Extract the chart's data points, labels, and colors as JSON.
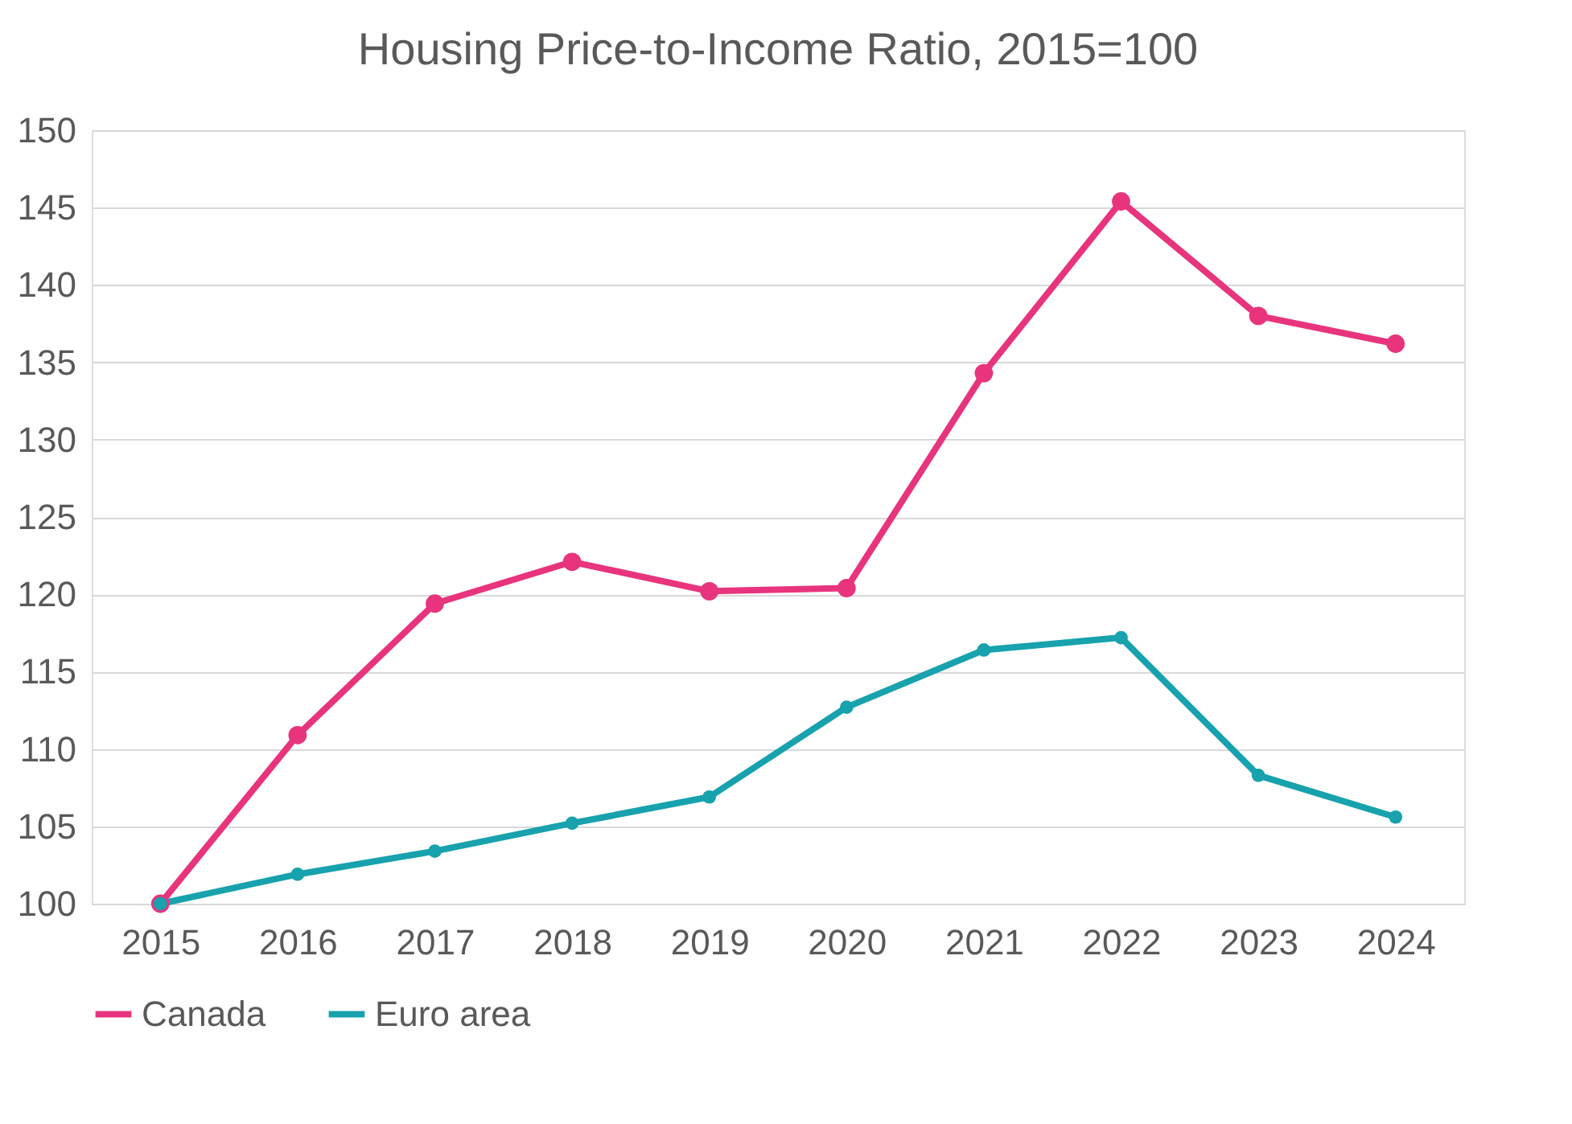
{
  "chart_data": {
    "type": "line",
    "title": "Housing Price-to-Income Ratio, 2015=100",
    "categories": [
      "2015",
      "2016",
      "2017",
      "2018",
      "2019",
      "2020",
      "2021",
      "2022",
      "2023",
      "2024"
    ],
    "series": [
      {
        "name": "Canada",
        "color": "#e8347d",
        "values": [
          100,
          110.9,
          119.4,
          122.1,
          120.2,
          120.4,
          134.3,
          145.4,
          138.0,
          136.2
        ]
      },
      {
        "name": "Euro area",
        "color": "#17a2ad",
        "values": [
          100,
          101.9,
          103.4,
          105.2,
          106.9,
          112.7,
          116.4,
          117.2,
          108.3,
          105.6
        ]
      }
    ],
    "ylim": [
      100,
      150
    ],
    "yticks": [
      100,
      105,
      110,
      115,
      120,
      125,
      130,
      135,
      140,
      145,
      150
    ],
    "grid": "y",
    "legend": "bottom",
    "marker": "circle",
    "line_style": "solid"
  }
}
